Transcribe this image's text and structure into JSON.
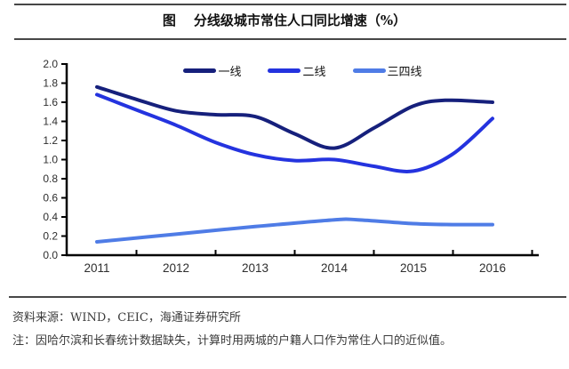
{
  "header": {
    "prefix": "图",
    "title": "分线级城市常住人口同比增速（%）"
  },
  "footer": {
    "source": "资料来源：WIND，CEIC，海通证券研究所",
    "note": "注：因哈尔滨和长春统计数据缺失，计算时用两城的户籍人口作为常住人口的近似值。"
  },
  "colors": {
    "axis": "#000000",
    "rule": "#474747",
    "tick_label": "#2e2e2e"
  },
  "chart_data": {
    "type": "line",
    "title": "分线级城市常住人口同比增速（%）",
    "xlabel": "",
    "ylabel": "",
    "ylim": [
      0.0,
      2.0
    ],
    "y_ticks": [
      0.0,
      0.2,
      0.4,
      0.6,
      0.8,
      1.0,
      1.2,
      1.4,
      1.6,
      1.8,
      2.0
    ],
    "x_ticks": [
      2011,
      2012,
      2013,
      2014,
      2015,
      2016
    ],
    "grid": false,
    "legend_position": "top-center",
    "series": [
      {
        "name": "一线",
        "color": "#16207c",
        "x": [
          2011,
          2011.5,
          2012,
          2012.5,
          2013,
          2013.5,
          2014,
          2014.5,
          2015,
          2015.4,
          2016
        ],
        "values": [
          1.76,
          1.63,
          1.51,
          1.47,
          1.45,
          1.27,
          1.12,
          1.33,
          1.56,
          1.62,
          1.6
        ]
      },
      {
        "name": "二线",
        "color": "#2433df",
        "x": [
          2011,
          2011.5,
          2012,
          2012.5,
          2013,
          2013.5,
          2014,
          2014.5,
          2015,
          2015.5,
          2016
        ],
        "values": [
          1.68,
          1.52,
          1.36,
          1.18,
          1.05,
          0.99,
          1.0,
          0.93,
          0.88,
          1.06,
          1.43
        ]
      },
      {
        "name": "三四线",
        "color": "#4f7ce6",
        "x": [
          2011,
          2012,
          2013,
          2014,
          2014.3,
          2015,
          2015.5,
          2016
        ],
        "values": [
          0.14,
          0.22,
          0.3,
          0.37,
          0.37,
          0.33,
          0.32,
          0.32
        ]
      }
    ]
  }
}
